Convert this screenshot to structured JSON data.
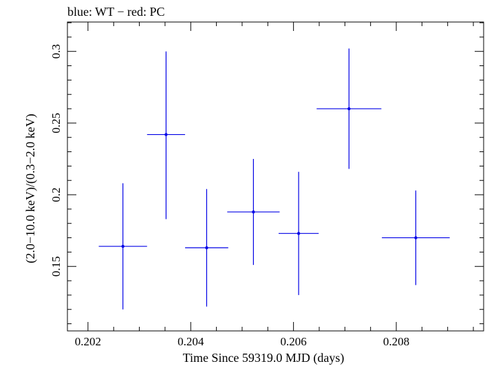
{
  "chart_data": {
    "type": "scatter",
    "title": "blue: WT − red: PC",
    "xlabel": "Time Since 59319.0 MJD (days)",
    "ylabel": "(2.0−10.0 keV)/(0.3−2.0 keV)",
    "xlim": [
      0.2016,
      0.2097
    ],
    "ylim": [
      0.105,
      0.3205
    ],
    "x_ticks": [
      {
        "value": 0.202,
        "label": "0.202"
      },
      {
        "value": 0.204,
        "label": "0.204"
      },
      {
        "value": 0.206,
        "label": "0.206"
      },
      {
        "value": 0.208,
        "label": "0.208"
      }
    ],
    "y_ticks": [
      {
        "value": 0.15,
        "label": "0.15"
      },
      {
        "value": 0.2,
        "label": "0.2"
      },
      {
        "value": 0.25,
        "label": "0.25"
      },
      {
        "value": 0.3,
        "label": "0.3"
      }
    ],
    "x_minor_step": 0.0005,
    "y_minor_step": 0.01,
    "grid": false,
    "series": [
      {
        "color": "#0000e6",
        "points": [
          {
            "x": 0.20268,
            "y": 0.164,
            "xerr_lo": 0.00047,
            "xerr_hi": 0.00047,
            "yerr_lo": 0.044,
            "yerr_hi": 0.044
          },
          {
            "x": 0.20352,
            "y": 0.242,
            "xerr_lo": 0.00037,
            "xerr_hi": 0.00037,
            "yerr_lo": 0.059,
            "yerr_hi": 0.058
          },
          {
            "x": 0.20431,
            "y": 0.163,
            "xerr_lo": 0.00042,
            "xerr_hi": 0.00042,
            "yerr_lo": 0.041,
            "yerr_hi": 0.041
          },
          {
            "x": 0.20522,
            "y": 0.188,
            "xerr_lo": 0.00051,
            "xerr_hi": 0.00051,
            "yerr_lo": 0.037,
            "yerr_hi": 0.037
          },
          {
            "x": 0.2061,
            "y": 0.173,
            "xerr_lo": 0.00039,
            "xerr_hi": 0.00039,
            "yerr_lo": 0.043,
            "yerr_hi": 0.043
          },
          {
            "x": 0.20708,
            "y": 0.26,
            "xerr_lo": 0.00063,
            "xerr_hi": 0.00063,
            "yerr_lo": 0.042,
            "yerr_hi": 0.042
          },
          {
            "x": 0.20838,
            "y": 0.17,
            "xerr_lo": 0.00066,
            "xerr_hi": 0.00066,
            "yerr_lo": 0.033,
            "yerr_hi": 0.033
          }
        ]
      }
    ]
  }
}
